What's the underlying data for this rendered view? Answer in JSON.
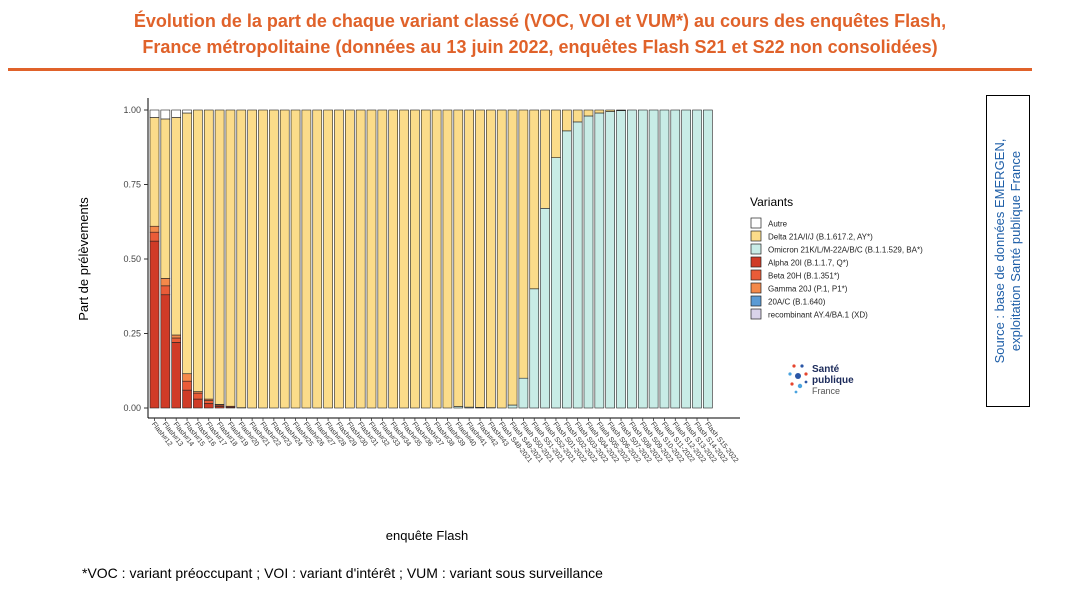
{
  "title": {
    "line1": "Évolution de la part de chaque variant classé (VOC, VOI et VUM*) au cours des enquêtes Flash,",
    "line2": "France métropolitaine (données au 13 juin 2022, enquêtes Flash S21 et S22 non consolidées)"
  },
  "footnote": "*VOC : variant préoccupant ; VOI : variant d'intérêt ; VUM : variant sous surveillance",
  "source": {
    "line1": "Source : base de données EMERGEN,",
    "line2": "exploitation Santé publique France"
  },
  "logo": {
    "line1": "Santé",
    "line2": "publique",
    "line3": "France"
  },
  "colors": {
    "accent": "#e0622a",
    "source_text": "#1f5fa8",
    "Autre": "#ffffff",
    "Delta": "#fbdc8a",
    "Omicron": "#c8ece6",
    "Alpha": "#d03b27",
    "Beta": "#ea5c38",
    "Gamma": "#f4894a",
    "20AC": "#5b9bd5",
    "recombinant": "#d9d3ea"
  },
  "chart_data": {
    "type": "bar",
    "stacked": true,
    "xlabel": "enquête Flash",
    "ylabel": "Part de prélèvements",
    "ylim": [
      0,
      1
    ],
    "yticks": [
      "0.00",
      "0.25",
      "0.50",
      "0.75",
      "1.00"
    ],
    "legend_title": "Variants",
    "legend_position": "right",
    "n_bars": 52,
    "stack_order": [
      "Alpha",
      "Beta",
      "Gamma",
      "20AC",
      "recombinant",
      "Omicron",
      "Delta",
      "Autre"
    ],
    "legend": [
      {
        "key": "Autre",
        "label": "Autre"
      },
      {
        "key": "Delta",
        "label": "Delta 21A/I/J (B.1.617.2, AY*)"
      },
      {
        "key": "Omicron",
        "label": "Omicron 21K/L/M-22A/B/C (B.1.1.529, BA*)"
      },
      {
        "key": "Alpha",
        "label": "Alpha 20I (B.1.1.7, Q*)"
      },
      {
        "key": "Beta",
        "label": "Beta 20H (B.1.351*)"
      },
      {
        "key": "Gamma",
        "label": "Gamma 20J (P.1, P1*)"
      },
      {
        "key": "20AC",
        "label": "20A/C (B.1.640)"
      },
      {
        "key": "recombinant",
        "label": "recombinant AY.4/BA.1 (XD)"
      }
    ],
    "x_tick_labels": [
      "Flash#12",
      "Flash#13",
      "Flash#14",
      "Flash#15",
      "Flash#16",
      "Flash#17",
      "Flash#18",
      "Flash#19",
      "Flash#20",
      "Flash#21",
      "Flash#22",
      "Flash#23",
      "Flash#24",
      "Flash#25",
      "Flash#26",
      "Flash#27",
      "Flash#28",
      "Flash#29",
      "Flash#30",
      "Flash#31",
      "Flash#32",
      "Flash#33",
      "Flash#34",
      "Flash#35",
      "Flash#36",
      "Flash#37",
      "Flash#38",
      "Flash#39",
      "Flash#40",
      "Flash#41",
      "Flash#42",
      "Flash#43",
      "Flash S48-2021",
      "Flash S49-2021",
      "Flash S50-2021",
      "Flash S51-2021",
      "Flash S52-2021",
      "Flash S01-2022",
      "Flash S02-2022",
      "Flash S03-2022",
      "Flash S04-2022",
      "Flash S05-2022",
      "Flash S06-2022",
      "Flash S07-2022",
      "Flash S08-2022",
      "Flash S09-2022",
      "Flash S10-2022",
      "Flash S11-2022",
      "Flash S12-2022",
      "Flash S13-2022",
      "Flash S14-2022",
      "Flash S15-2022"
    ],
    "series": [
      {
        "key": "Alpha",
        "values": [
          0.56,
          0.38,
          0.22,
          0.06,
          0.03,
          0.015,
          0.005,
          0.003,
          0.001,
          0,
          0,
          0,
          0,
          0,
          0,
          0,
          0,
          0,
          0,
          0,
          0,
          0,
          0,
          0,
          0,
          0,
          0,
          0,
          0,
          0,
          0,
          0,
          0,
          0,
          0,
          0,
          0,
          0,
          0,
          0,
          0,
          0,
          0,
          0,
          0,
          0,
          0,
          0,
          0,
          0,
          0,
          0
        ]
      },
      {
        "key": "Beta",
        "values": [
          0.03,
          0.03,
          0.015,
          0.03,
          0.02,
          0.01,
          0.005,
          0.003,
          0,
          0,
          0,
          0,
          0,
          0,
          0,
          0,
          0,
          0,
          0,
          0,
          0,
          0,
          0,
          0,
          0,
          0,
          0,
          0,
          0,
          0,
          0,
          0,
          0,
          0,
          0,
          0,
          0,
          0,
          0,
          0,
          0,
          0,
          0,
          0,
          0,
          0,
          0,
          0,
          0,
          0,
          0,
          0
        ]
      },
      {
        "key": "Gamma",
        "values": [
          0.02,
          0.025,
          0.01,
          0.025,
          0.005,
          0.005,
          0.002,
          0,
          0,
          0,
          0,
          0,
          0,
          0,
          0,
          0,
          0,
          0,
          0,
          0,
          0,
          0,
          0,
          0,
          0,
          0,
          0,
          0,
          0,
          0,
          0,
          0,
          0,
          0,
          0,
          0,
          0,
          0,
          0,
          0,
          0,
          0,
          0,
          0,
          0,
          0,
          0,
          0,
          0,
          0,
          0,
          0
        ]
      },
      {
        "key": "20AC",
        "values": [
          0,
          0,
          0,
          0,
          0,
          0,
          0,
          0,
          0,
          0,
          0,
          0,
          0,
          0,
          0,
          0,
          0,
          0,
          0,
          0,
          0,
          0,
          0,
          0,
          0,
          0,
          0,
          0,
          0,
          0,
          0,
          0,
          0,
          0,
          0,
          0,
          0,
          0,
          0,
          0,
          0,
          0,
          0,
          0,
          0,
          0,
          0,
          0,
          0,
          0,
          0,
          0
        ]
      },
      {
        "key": "recombinant",
        "values": [
          0,
          0,
          0,
          0,
          0,
          0,
          0,
          0,
          0,
          0,
          0,
          0,
          0,
          0,
          0,
          0,
          0,
          0,
          0,
          0,
          0,
          0,
          0,
          0,
          0,
          0,
          0,
          0,
          0,
          0,
          0,
          0,
          0,
          0,
          0,
          0,
          0,
          0,
          0,
          0,
          0,
          0,
          0,
          0,
          0,
          0,
          0,
          0,
          0,
          0,
          0,
          0
        ]
      },
      {
        "key": "Omicron",
        "values": [
          0,
          0,
          0,
          0,
          0,
          0,
          0,
          0,
          0,
          0,
          0,
          0,
          0,
          0,
          0,
          0,
          0,
          0,
          0,
          0,
          0,
          0,
          0,
          0,
          0,
          0,
          0,
          0,
          0.005,
          0.003,
          0.002,
          0.001,
          0,
          0.01,
          0.1,
          0.4,
          0.67,
          0.84,
          0.93,
          0.96,
          0.98,
          0.99,
          0.995,
          0.998,
          1,
          1,
          1,
          1,
          1,
          1,
          1,
          1
        ]
      },
      {
        "key": "Delta",
        "values": [
          0.365,
          0.535,
          0.73,
          0.875,
          0.945,
          0.97,
          0.988,
          0.994,
          0.999,
          1,
          1,
          1,
          1,
          1,
          1,
          1,
          1,
          1,
          1,
          1,
          1,
          1,
          1,
          1,
          1,
          1,
          1,
          1,
          0.995,
          0.997,
          0.998,
          0.999,
          1,
          0.99,
          0.9,
          0.6,
          0.33,
          0.16,
          0.07,
          0.04,
          0.02,
          0.01,
          0.005,
          0.002,
          0,
          0,
          0,
          0,
          0,
          0,
          0,
          0
        ]
      },
      {
        "key": "Autre",
        "values": [
          0.025,
          0.03,
          0.025,
          0.01,
          0,
          0,
          0,
          0,
          0,
          0,
          0,
          0,
          0,
          0,
          0,
          0,
          0,
          0,
          0,
          0,
          0,
          0,
          0,
          0,
          0,
          0,
          0,
          0,
          0,
          0,
          0,
          0,
          0,
          0,
          0,
          0,
          0,
          0,
          0,
          0,
          0,
          0,
          0,
          0,
          0,
          0,
          0,
          0,
          0,
          0,
          0,
          0
        ]
      }
    ]
  }
}
